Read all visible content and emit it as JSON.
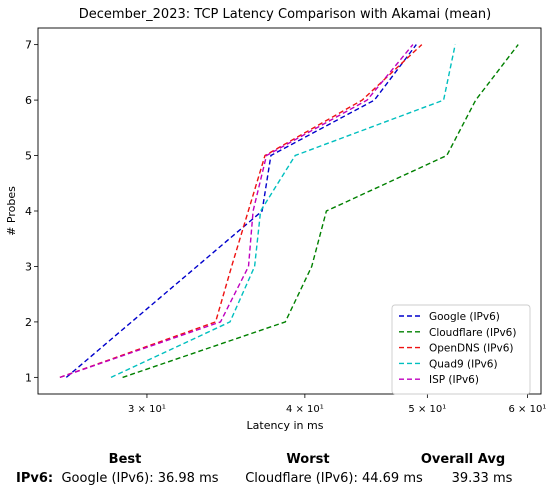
{
  "chart_data": {
    "type": "line",
    "title": "December_2023: TCP Latency Comparison with Akamai (mean)",
    "xlabel": "Latency in ms",
    "ylabel": "# Probes",
    "xscale": "log",
    "xlim": [
      24.6,
      61.5
    ],
    "ylim": [
      0.7,
      7.3
    ],
    "xticks": [
      {
        "value": 30,
        "label": "3 × 10¹"
      },
      {
        "value": 40,
        "label": "4 × 10¹"
      },
      {
        "value": 50,
        "label": "5 × 10¹"
      },
      {
        "value": 60,
        "label": "6 × 10¹"
      }
    ],
    "yticks": [
      "1",
      "2",
      "3",
      "4",
      "5",
      "6",
      "7"
    ],
    "grid": false,
    "legend_position": "lower-right",
    "series": [
      {
        "name": "Google (IPv6)",
        "color": "#0000cc",
        "dash": "dashed",
        "points": [
          [
            25.9,
            1
          ],
          [
            37.0,
            4
          ],
          [
            37.6,
            5
          ],
          [
            45.4,
            6
          ],
          [
            49.0,
            7
          ]
        ]
      },
      {
        "name": "Cloudflare (IPv6)",
        "color": "#008000",
        "dash": "dashed",
        "points": [
          [
            28.7,
            1
          ],
          [
            38.6,
            2
          ],
          [
            40.5,
            3
          ],
          [
            41.6,
            4
          ],
          [
            51.8,
            5
          ],
          [
            54.6,
            6
          ],
          [
            59.0,
            7
          ]
        ]
      },
      {
        "name": "OpenDNS (IPv6)",
        "color": "#ee1111",
        "dash": "dashed",
        "points": [
          [
            25.6,
            1
          ],
          [
            34.0,
            2
          ],
          [
            35.0,
            3
          ],
          [
            37.2,
            5
          ],
          [
            44.4,
            6
          ],
          [
            49.5,
            7
          ]
        ]
      },
      {
        "name": "Quad9 (IPv6)",
        "color": "#00bfbf",
        "dash": "dashed",
        "points": [
          [
            28.1,
            1
          ],
          [
            34.9,
            2
          ],
          [
            36.5,
            3
          ],
          [
            36.9,
            4
          ],
          [
            39.3,
            5
          ],
          [
            51.5,
            6
          ],
          [
            52.6,
            7
          ]
        ]
      },
      {
        "name": "ISP (IPv6)",
        "color": "#bf00bf",
        "dash": "dashed",
        "points": [
          [
            25.6,
            1
          ],
          [
            34.3,
            2
          ],
          [
            36.1,
            3
          ],
          [
            36.4,
            4
          ],
          [
            37.3,
            5
          ],
          [
            44.8,
            6
          ],
          [
            48.7,
            7
          ]
        ]
      }
    ]
  },
  "summary": {
    "headers": {
      "best": "Best",
      "worst": "Worst",
      "overall": "Overall Avg"
    },
    "row_label": "IPv6:",
    "best": "Google (IPv6): 36.98 ms",
    "worst": "Cloudflare (IPv6): 44.69 ms",
    "overall": "39.33 ms"
  }
}
